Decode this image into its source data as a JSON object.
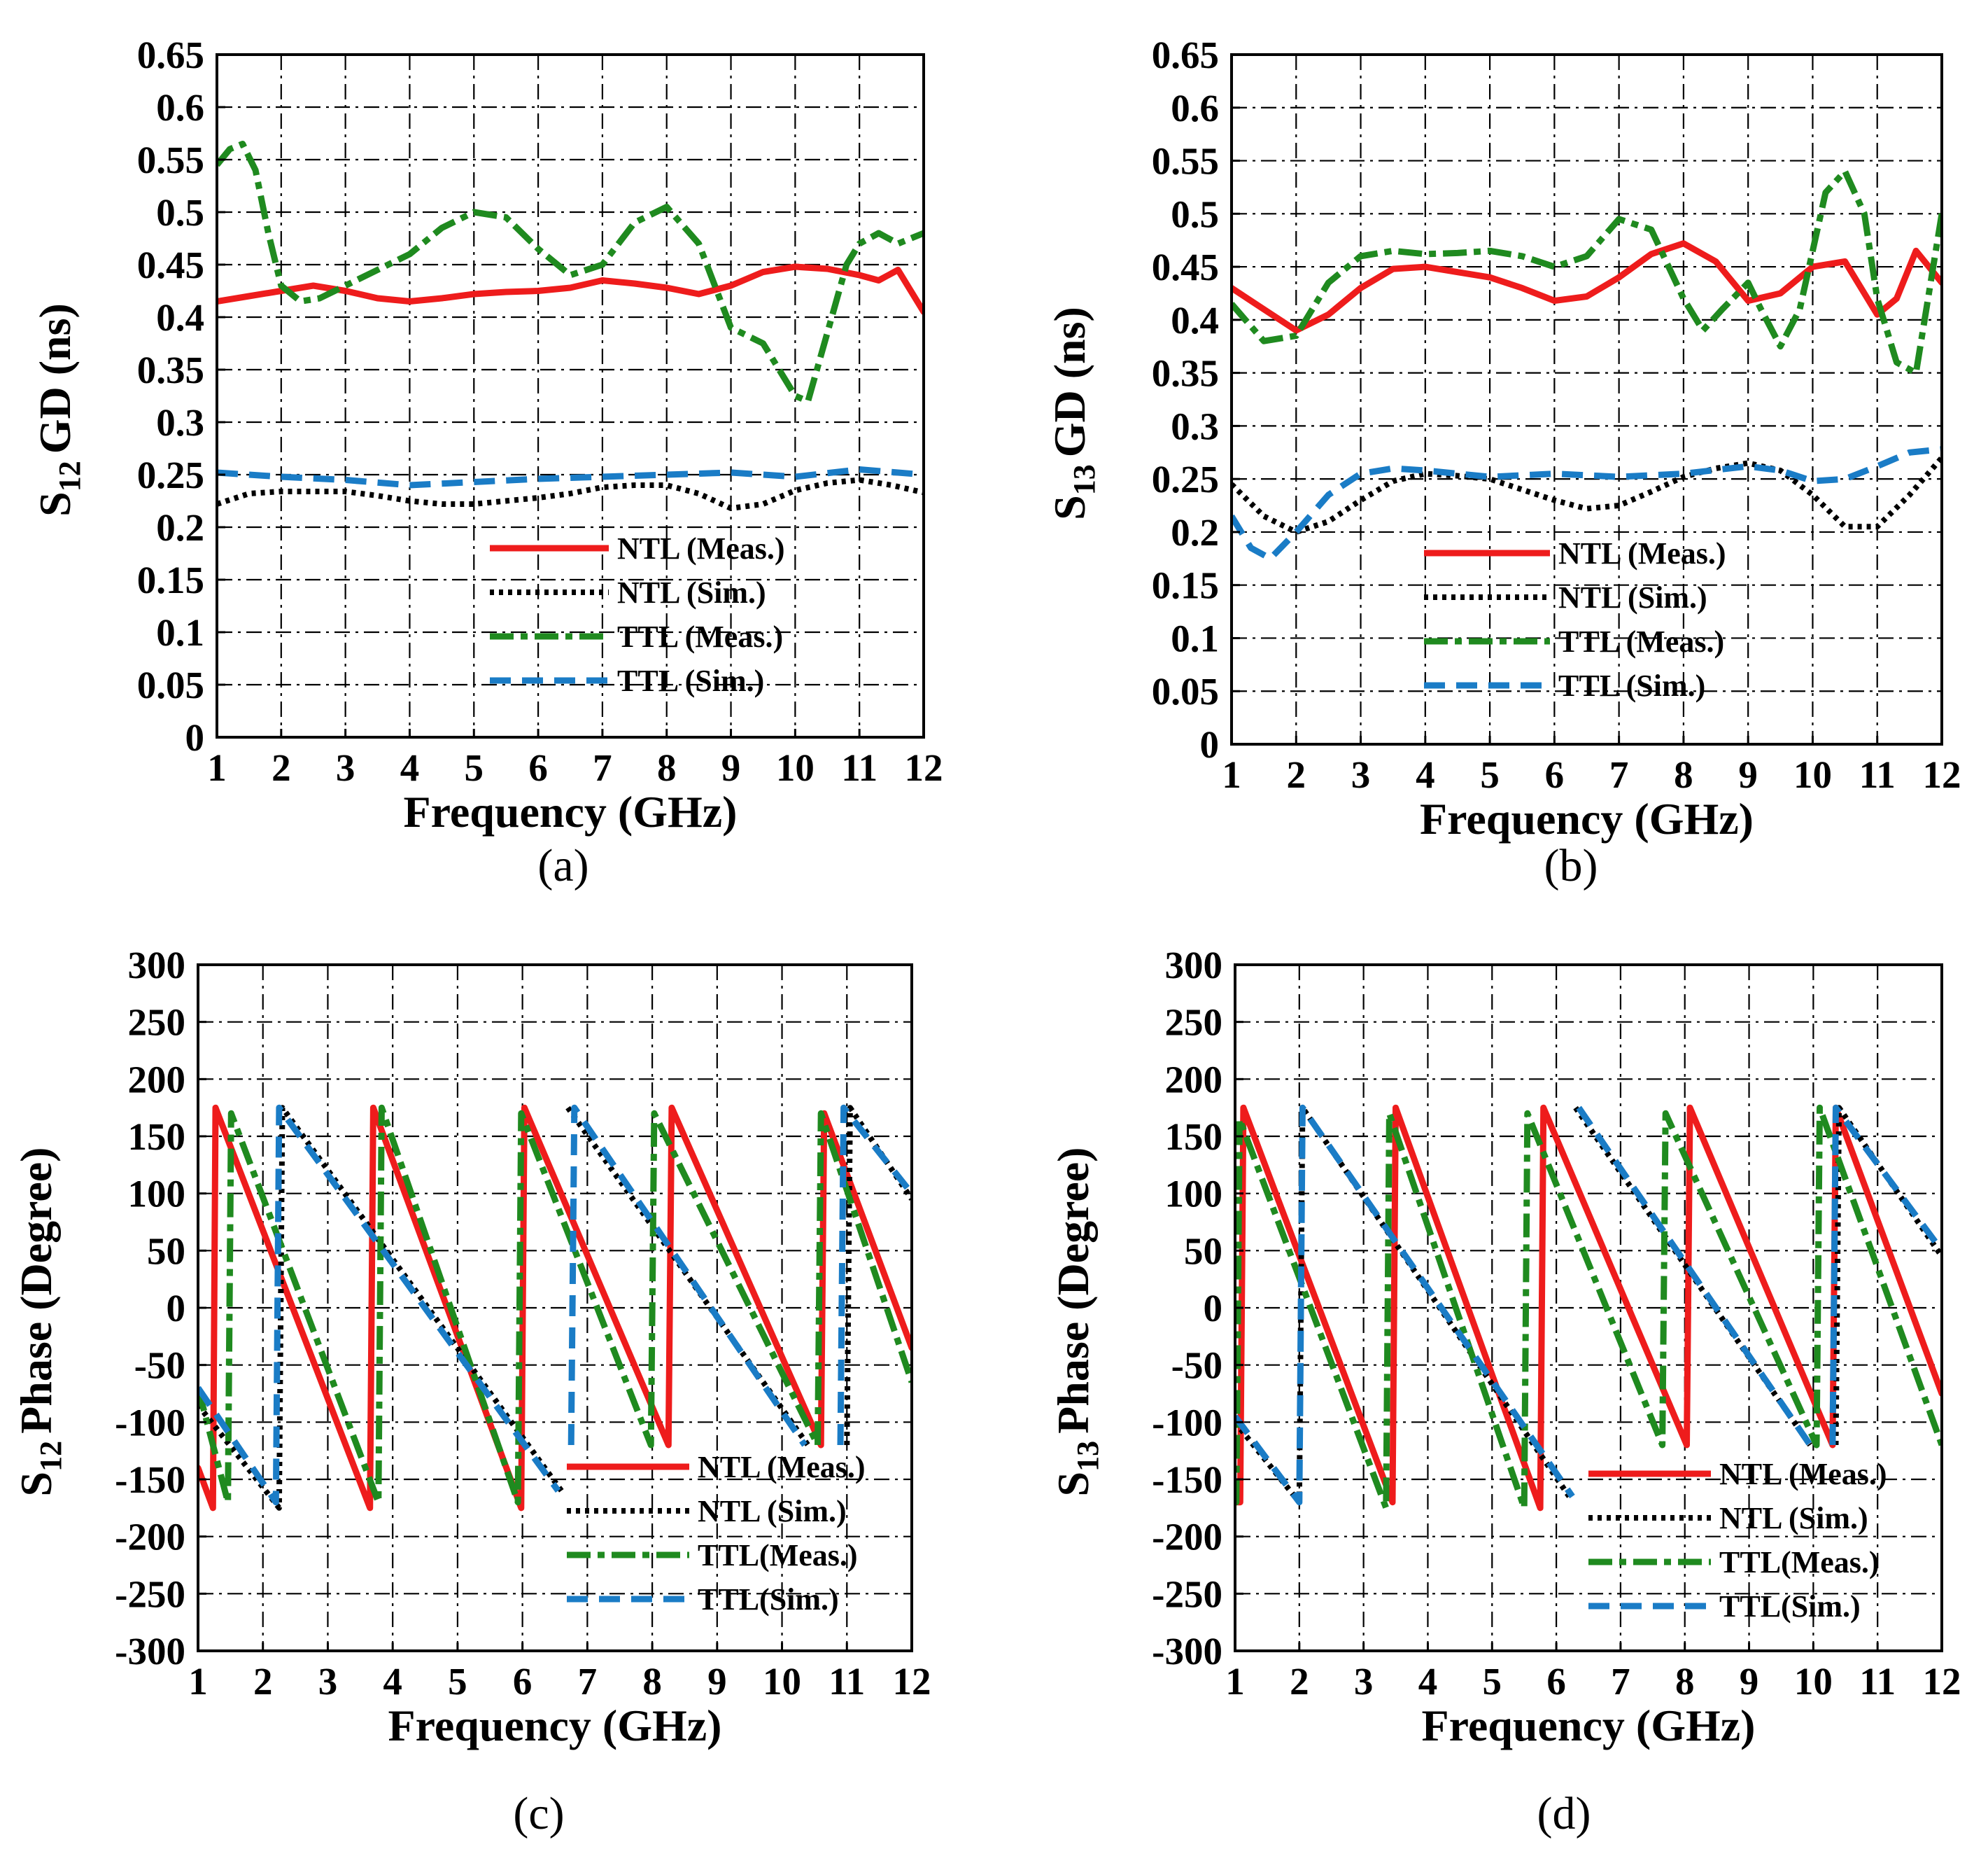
{
  "colors": {
    "ntl_meas": "#ee1c1c",
    "ntl_sim": "#000000",
    "ttl_meas": "#1f8a1f",
    "ttl_sim": "#1a7cc6"
  },
  "chart_data": [
    {
      "type": "line",
      "panel_label": "(a)",
      "ylabel_main": "S",
      "ylabel_sub": "12",
      "ylabel_rest": "GD (ns)",
      "xlabel": "Frequency (GHz)",
      "xlim": [
        1,
        12
      ],
      "ylim": [
        0,
        0.65
      ],
      "xticks": [
        "1",
        "2",
        "3",
        "4",
        "5",
        "6",
        "7",
        "8",
        "9",
        "10",
        "11",
        "12"
      ],
      "yticks": [
        "0",
        "0.05",
        "0.1",
        "0.15",
        "0.2",
        "0.25",
        "0.3",
        "0.35",
        "0.4",
        "0.45",
        "0.5",
        "0.55",
        "0.6",
        "0.65"
      ],
      "legend": [
        "NTL (Meas.)",
        "NTL (Sim.)",
        "TTL (Meas.)",
        "TTL (Sim.)"
      ],
      "series": [
        {
          "name": "NTL (Meas.)",
          "style": "solid",
          "color": "#ee1c1c",
          "x": [
            1,
            1.5,
            2,
            2.5,
            3,
            3.5,
            4,
            4.5,
            5,
            5.5,
            6,
            6.5,
            7,
            7.5,
            8,
            8.5,
            9,
            9.5,
            10,
            10.5,
            11,
            11.3,
            11.6,
            12
          ],
          "y": [
            0.415,
            0.42,
            0.425,
            0.43,
            0.425,
            0.418,
            0.415,
            0.418,
            0.422,
            0.424,
            0.425,
            0.428,
            0.435,
            0.432,
            0.428,
            0.422,
            0.43,
            0.443,
            0.448,
            0.446,
            0.44,
            0.435,
            0.445,
            0.405
          ]
        },
        {
          "name": "NTL (Sim.)",
          "style": "dotted",
          "color": "#000000",
          "x": [
            1,
            1.5,
            2,
            2.5,
            3,
            3.5,
            4,
            4.5,
            5,
            5.5,
            6,
            6.5,
            7,
            7.5,
            8,
            8.5,
            9,
            9.5,
            10,
            10.5,
            11,
            11.5,
            12
          ],
          "y": [
            0.222,
            0.232,
            0.234,
            0.234,
            0.234,
            0.23,
            0.225,
            0.222,
            0.222,
            0.225,
            0.228,
            0.232,
            0.238,
            0.24,
            0.24,
            0.232,
            0.218,
            0.222,
            0.235,
            0.242,
            0.245,
            0.24,
            0.233
          ]
        },
        {
          "name": "TTL (Meas.)",
          "style": "dashdot",
          "color": "#1f8a1f",
          "x": [
            1,
            1.2,
            1.4,
            1.6,
            1.8,
            2,
            2.3,
            2.6,
            3,
            3.5,
            4,
            4.5,
            5,
            5.5,
            6,
            6.5,
            7,
            7.5,
            8,
            8.5,
            9,
            9.5,
            10,
            10.2,
            10.5,
            10.8,
            11,
            11.3,
            11.6,
            12
          ],
          "y": [
            0.545,
            0.56,
            0.565,
            0.54,
            0.48,
            0.43,
            0.415,
            0.418,
            0.43,
            0.445,
            0.46,
            0.485,
            0.5,
            0.495,
            0.465,
            0.44,
            0.45,
            0.49,
            0.505,
            0.47,
            0.39,
            0.375,
            0.325,
            0.32,
            0.385,
            0.45,
            0.47,
            0.48,
            0.47,
            0.48
          ]
        },
        {
          "name": "TTL (Sim.)",
          "style": "dashed",
          "color": "#1a7cc6",
          "x": [
            1,
            2,
            3,
            4,
            5,
            6,
            7,
            8,
            9,
            10,
            11,
            12
          ],
          "y": [
            0.252,
            0.248,
            0.245,
            0.24,
            0.243,
            0.246,
            0.248,
            0.25,
            0.252,
            0.248,
            0.255,
            0.25
          ]
        }
      ]
    },
    {
      "type": "line",
      "panel_label": "(b)",
      "ylabel_main": "S",
      "ylabel_sub": "13",
      "ylabel_rest": "GD (ns)",
      "xlabel": "Frequency (GHz)",
      "xlim": [
        1,
        12
      ],
      "ylim": [
        0,
        0.65
      ],
      "xticks": [
        "1",
        "2",
        "3",
        "4",
        "5",
        "6",
        "7",
        "8",
        "9",
        "10",
        "11",
        "12"
      ],
      "yticks": [
        "0",
        "0.05",
        "0.1",
        "0.15",
        "0.2",
        "0.25",
        "0.3",
        "0.35",
        "0.4",
        "0.45",
        "0.5",
        "0.55",
        "0.6",
        "0.65"
      ],
      "legend": [
        "NTL (Meas.)",
        "NTL (Sim.)",
        "TTL (Meas.)",
        "TTL (Sim.)"
      ],
      "series": [
        {
          "name": "NTL (Meas.)",
          "style": "solid",
          "color": "#ee1c1c",
          "x": [
            1,
            1.5,
            2,
            2.5,
            3,
            3.5,
            4,
            4.5,
            5,
            5.5,
            6,
            6.5,
            7,
            7.5,
            8,
            8.5,
            9,
            9.5,
            10,
            10.5,
            11,
            11.3,
            11.6,
            12
          ],
          "y": [
            0.43,
            0.41,
            0.39,
            0.405,
            0.43,
            0.448,
            0.45,
            0.445,
            0.44,
            0.43,
            0.418,
            0.422,
            0.44,
            0.462,
            0.472,
            0.455,
            0.418,
            0.425,
            0.45,
            0.455,
            0.405,
            0.42,
            0.465,
            0.435
          ]
        },
        {
          "name": "NTL (Sim.)",
          "style": "dotted",
          "color": "#000000",
          "x": [
            1,
            1.5,
            2,
            2.5,
            3,
            3.5,
            4,
            4.5,
            5,
            5.5,
            6,
            6.5,
            7,
            7.5,
            8,
            8.5,
            9,
            9.5,
            10,
            10.5,
            11,
            11.5,
            12
          ],
          "y": [
            0.245,
            0.215,
            0.2,
            0.21,
            0.23,
            0.248,
            0.255,
            0.253,
            0.25,
            0.24,
            0.23,
            0.222,
            0.225,
            0.238,
            0.252,
            0.26,
            0.265,
            0.258,
            0.235,
            0.205,
            0.205,
            0.235,
            0.27
          ]
        },
        {
          "name": "TTL (Meas.)",
          "style": "dashdot",
          "color": "#1f8a1f",
          "x": [
            1,
            1.5,
            2,
            2.5,
            3,
            3.5,
            4,
            4.5,
            5,
            5.5,
            6,
            6.5,
            7,
            7.5,
            8,
            8.3,
            8.6,
            9,
            9.2,
            9.5,
            9.8,
            10.2,
            10.5,
            10.8,
            11,
            11.3,
            11.6,
            12
          ],
          "y": [
            0.415,
            0.38,
            0.385,
            0.435,
            0.46,
            0.465,
            0.462,
            0.463,
            0.465,
            0.46,
            0.45,
            0.46,
            0.495,
            0.485,
            0.42,
            0.39,
            0.41,
            0.435,
            0.41,
            0.375,
            0.41,
            0.52,
            0.54,
            0.5,
            0.42,
            0.36,
            0.35,
            0.5
          ]
        },
        {
          "name": "TTL (Sim.)",
          "style": "dashed",
          "color": "#1a7cc6",
          "x": [
            1,
            1.3,
            1.6,
            2,
            2.5,
            3,
            3.5,
            4,
            5,
            6,
            7,
            8,
            9,
            9.5,
            10,
            10.5,
            11,
            11.5,
            12
          ],
          "y": [
            0.215,
            0.185,
            0.175,
            0.2,
            0.235,
            0.255,
            0.26,
            0.258,
            0.252,
            0.255,
            0.252,
            0.255,
            0.262,
            0.258,
            0.248,
            0.25,
            0.262,
            0.275,
            0.278
          ]
        }
      ]
    },
    {
      "type": "line",
      "panel_label": "(c)",
      "ylabel_main": "S",
      "ylabel_sub": "12",
      "ylabel_rest": "Phase (Degree)",
      "xlabel": "Frequency (GHz)",
      "xlim": [
        1,
        12
      ],
      "ylim": [
        -300,
        300
      ],
      "xticks": [
        "1",
        "2",
        "3",
        "4",
        "5",
        "6",
        "7",
        "8",
        "9",
        "10",
        "11",
        "12"
      ],
      "yticks": [
        "-300",
        "-250",
        "-200",
        "-150",
        "-100",
        "-50",
        "0",
        "50",
        "100",
        "150",
        "200",
        "250",
        "300"
      ],
      "legend": [
        "NTL (Meas.)",
        "NTL (Sim.)",
        "TTL(Meas.)",
        "TTL(Sim.)"
      ],
      "series": [
        {
          "name": "NTL (Meas.)",
          "style": "solid",
          "color": "#ee1c1c",
          "x": [
            1,
            1.23,
            1.27,
            3.65,
            3.7,
            5.98,
            6.03,
            8.25,
            8.3,
            10.6,
            10.65,
            12
          ],
          "y": [
            -140,
            -175,
            175,
            -175,
            175,
            -175,
            175,
            -120,
            175,
            -120,
            170,
            -35
          ]
        },
        {
          "name": "NTL (Sim.)",
          "style": "dotted",
          "color": "#000000",
          "x": [
            1,
            2.25,
            2.3,
            6.6,
            6.65,
            6.7,
            10.4,
            10.4,
            11.0,
            11.05,
            12
          ],
          "y": [
            -85,
            -175,
            175,
            -160,
            null,
            175,
            -120,
            null,
            -120,
            175,
            95
          ]
        },
        {
          "name": "TTL(Meas.)",
          "style": "dashdot",
          "color": "#1f8a1f",
          "x": [
            1,
            1.46,
            1.51,
            3.78,
            3.83,
            5.93,
            5.98,
            7.98,
            8.03,
            10.55,
            10.6,
            12
          ],
          "y": [
            -70,
            -170,
            170,
            -170,
            175,
            -170,
            170,
            -120,
            170,
            -120,
            170,
            -65
          ]
        },
        {
          "name": "TTL(Sim.)",
          "style": "dashed",
          "color": "#1a7cc6",
          "x": [
            1,
            2.2,
            2.25,
            6.55,
            6.55,
            6.75,
            6.8,
            10.35,
            10.35,
            10.9,
            10.95,
            12
          ],
          "y": [
            -70,
            -170,
            175,
            -160,
            null,
            -120,
            175,
            -120,
            null,
            -120,
            175,
            100
          ]
        }
      ]
    },
    {
      "type": "line",
      "panel_label": "(d)",
      "ylabel_main": "S",
      "ylabel_sub": "13",
      "ylabel_rest": "Phase (Degree)",
      "xlabel": "Frequency (GHz)",
      "xlim": [
        1,
        12
      ],
      "ylim": [
        -300,
        300
      ],
      "xticks": [
        "1",
        "2",
        "3",
        "4",
        "5",
        "6",
        "7",
        "8",
        "9",
        "10",
        "11",
        "12"
      ],
      "yticks": [
        "-300",
        "-250",
        "-200",
        "-150",
        "-100",
        "-50",
        "0",
        "50",
        "100",
        "150",
        "200",
        "250",
        "300"
      ],
      "legend": [
        "NTL (Meas.)",
        "NTL (Sim.)",
        "TTL(Meas.)",
        "TTL(Sim.)"
      ],
      "series": [
        {
          "name": "NTL (Meas.)",
          "style": "solid",
          "color": "#ee1c1c",
          "x": [
            1,
            1.08,
            1.13,
            3.45,
            3.5,
            5.75,
            5.8,
            8.03,
            8.08,
            10.3,
            10.35,
            12
          ],
          "y": [
            -170,
            -170,
            175,
            -170,
            175,
            -175,
            175,
            -120,
            175,
            -120,
            175,
            -75
          ]
        },
        {
          "name": "NTL (Sim.)",
          "style": "dotted",
          "color": "#000000",
          "x": [
            1,
            2,
            2.05,
            6.2,
            6.25,
            6.3,
            9.95,
            9.95,
            10.35,
            10.4,
            12
          ],
          "y": [
            -100,
            -170,
            175,
            -165,
            null,
            175,
            -120,
            null,
            -120,
            175,
            45
          ]
        },
        {
          "name": "TTL(Meas.)",
          "style": "dashdot",
          "color": "#1f8a1f",
          "x": [
            1,
            1.02,
            1.07,
            3.35,
            3.4,
            5.5,
            5.55,
            7.65,
            7.7,
            10.05,
            10.1,
            12
          ],
          "y": [
            -170,
            -170,
            165,
            -175,
            170,
            -175,
            170,
            -120,
            170,
            -120,
            175,
            -120
          ]
        },
        {
          "name": "TTL(Sim.)",
          "style": "dashed",
          "color": "#1a7cc6",
          "x": [
            1,
            2,
            2.05,
            6.25,
            6.3,
            6.35,
            9.95,
            9.95,
            10.3,
            10.35,
            12
          ],
          "y": [
            -95,
            -170,
            175,
            -165,
            null,
            175,
            -120,
            null,
            -120,
            175,
            50
          ]
        }
      ]
    }
  ]
}
